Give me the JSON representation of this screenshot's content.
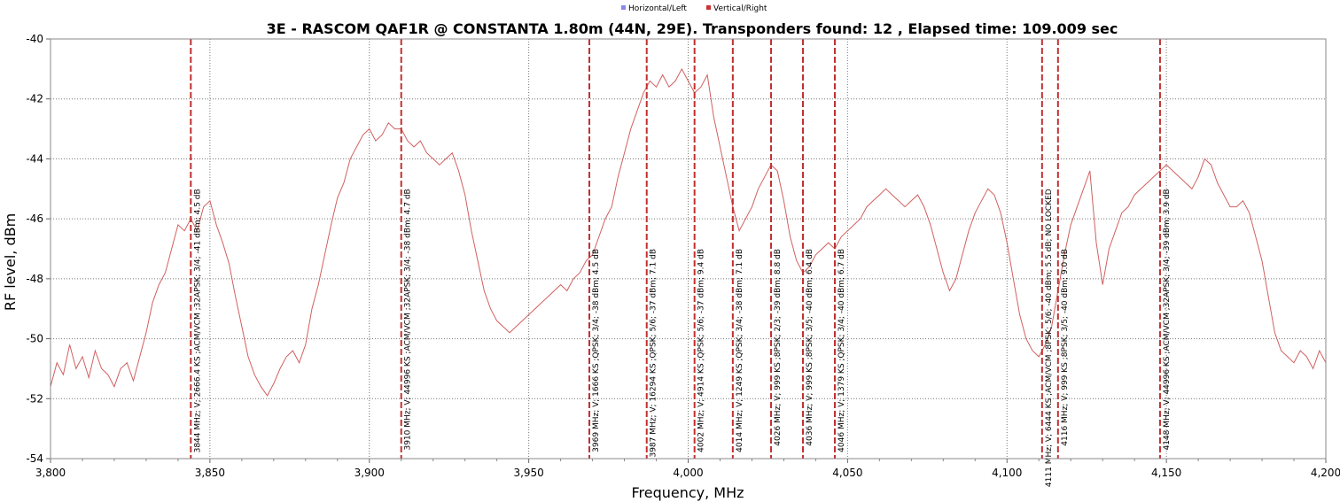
{
  "chart_data": {
    "type": "line",
    "title": "3E - RASCOM QAF1R @ CONSTANTA 1.80m (44N, 29E). Transponders found: 12 , Elapsed time: 109.009 sec",
    "xlabel": "Frequency, MHz",
    "ylabel": "RF level, dBm",
    "xlim": [
      3800,
      4200
    ],
    "ylim": [
      -54,
      -40
    ],
    "x_ticks": [
      3800,
      3850,
      3900,
      3950,
      4000,
      4050,
      4100,
      4150,
      4200
    ],
    "x_tick_labels": [
      "3,800",
      "3,850",
      "3,900",
      "3,950",
      "4,000",
      "4,050",
      "4,100",
      "4,150",
      "4,200"
    ],
    "y_ticks": [
      -54,
      -52,
      -50,
      -48,
      -46,
      -44,
      -42,
      -40
    ],
    "y_tick_labels": [
      "-54",
      "-52",
      "-50",
      "-48",
      "-46",
      "-44",
      "-42",
      "-40"
    ],
    "grid": true,
    "legend_position": "top-center",
    "legend": [
      {
        "name": "Horizontal/Left",
        "color": "#8888ee"
      },
      {
        "name": "Vertical/Right",
        "color": "#cc3333"
      }
    ],
    "series": [
      {
        "name": "Vertical/Right",
        "color": "#d06060",
        "x": [
          3800,
          3802,
          3804,
          3806,
          3808,
          3810,
          3812,
          3814,
          3816,
          3818,
          3820,
          3822,
          3824,
          3826,
          3828,
          3830,
          3832,
          3834,
          3836,
          3838,
          3840,
          3842,
          3844,
          3846,
          3848,
          3850,
          3852,
          3854,
          3856,
          3858,
          3860,
          3862,
          3864,
          3866,
          3868,
          3870,
          3872,
          3874,
          3876,
          3878,
          3880,
          3882,
          3884,
          3886,
          3888,
          3890,
          3892,
          3894,
          3896,
          3898,
          3900,
          3902,
          3904,
          3906,
          3908,
          3910,
          3912,
          3914,
          3916,
          3918,
          3920,
          3922,
          3924,
          3926,
          3928,
          3930,
          3932,
          3934,
          3936,
          3938,
          3940,
          3942,
          3944,
          3946,
          3948,
          3950,
          3952,
          3954,
          3956,
          3958,
          3960,
          3962,
          3964,
          3966,
          3968,
          3970,
          3972,
          3974,
          3976,
          3978,
          3980,
          3982,
          3984,
          3986,
          3988,
          3990,
          3992,
          3994,
          3996,
          3998,
          4000,
          4002,
          4004,
          4006,
          4008,
          4010,
          4012,
          4014,
          4016,
          4018,
          4020,
          4022,
          4024,
          4026,
          4028,
          4030,
          4032,
          4034,
          4036,
          4038,
          4040,
          4042,
          4044,
          4046,
          4048,
          4050,
          4052,
          4054,
          4056,
          4058,
          4060,
          4062,
          4064,
          4066,
          4068,
          4070,
          4072,
          4074,
          4076,
          4078,
          4080,
          4082,
          4084,
          4086,
          4088,
          4090,
          4092,
          4094,
          4096,
          4098,
          4100,
          4102,
          4104,
          4106,
          4108,
          4110,
          4112,
          4114,
          4116,
          4118,
          4120,
          4122,
          4124,
          4126,
          4128,
          4130,
          4132,
          4134,
          4136,
          4138,
          4140,
          4142,
          4144,
          4146,
          4148,
          4150,
          4152,
          4154,
          4156,
          4158,
          4160,
          4162,
          4164,
          4166,
          4168,
          4170,
          4172,
          4174,
          4176,
          4178,
          4180,
          4182,
          4184,
          4186,
          4188,
          4190,
          4192,
          4194,
          4196,
          4198,
          4200
        ],
        "y": [
          -51.6,
          -50.8,
          -51.2,
          -50.2,
          -51.0,
          -50.6,
          -51.3,
          -50.4,
          -51.0,
          -51.2,
          -51.6,
          -51.0,
          -50.8,
          -51.4,
          -50.6,
          -49.8,
          -48.8,
          -48.2,
          -47.8,
          -47.0,
          -46.2,
          -46.4,
          -46.0,
          -46.4,
          -45.6,
          -45.4,
          -46.2,
          -46.8,
          -47.5,
          -48.6,
          -49.6,
          -50.6,
          -51.2,
          -51.6,
          -51.9,
          -51.5,
          -51.0,
          -50.6,
          -50.4,
          -50.8,
          -50.2,
          -49.0,
          -48.2,
          -47.2,
          -46.2,
          -45.3,
          -44.8,
          -44.0,
          -43.6,
          -43.2,
          -43.0,
          -43.4,
          -43.2,
          -42.8,
          -43.0,
          -43.0,
          -43.4,
          -43.6,
          -43.4,
          -43.8,
          -44.0,
          -44.2,
          -44.0,
          -43.8,
          -44.4,
          -45.2,
          -46.4,
          -47.4,
          -48.4,
          -49.0,
          -49.4,
          -49.6,
          -49.8,
          -49.6,
          -49.4,
          -49.2,
          -49.0,
          -48.8,
          -48.6,
          -48.4,
          -48.2,
          -48.4,
          -48.0,
          -47.8,
          -47.4,
          -47.2,
          -46.6,
          -46.0,
          -45.6,
          -44.6,
          -43.8,
          -43.0,
          -42.4,
          -41.8,
          -41.4,
          -41.6,
          -41.2,
          -41.6,
          -41.4,
          -41.0,
          -41.4,
          -41.8,
          -41.6,
          -41.2,
          -42.6,
          -43.6,
          -44.6,
          -45.6,
          -46.4,
          -46.0,
          -45.6,
          -45.0,
          -44.6,
          -44.2,
          -44.4,
          -45.4,
          -46.6,
          -47.4,
          -47.8,
          -47.6,
          -47.2,
          -47.0,
          -46.8,
          -47.0,
          -46.6,
          -46.4,
          -46.2,
          -46.0,
          -45.6,
          -45.4,
          -45.2,
          -45.0,
          -45.2,
          -45.4,
          -45.6,
          -45.4,
          -45.2,
          -45.6,
          -46.2,
          -47.0,
          -47.8,
          -48.4,
          -48.0,
          -47.2,
          -46.4,
          -45.8,
          -45.4,
          -45.0,
          -45.2,
          -45.8,
          -46.8,
          -48.0,
          -49.2,
          -50.0,
          -50.4,
          -50.6,
          -50.2,
          -49.6,
          -48.4,
          -47.2,
          -46.2,
          -45.6,
          -45.0,
          -44.4,
          -46.8,
          -48.2,
          -47.0,
          -46.4,
          -45.8,
          -45.6,
          -45.2,
          -45.0,
          -44.8,
          -44.6,
          -44.4,
          -44.2,
          -44.4,
          -44.6,
          -44.8,
          -45.0,
          -44.6,
          -44.0,
          -44.2,
          -44.8,
          -45.2,
          -45.6,
          -45.6,
          -45.4,
          -45.8,
          -46.6,
          -47.4,
          -48.6,
          -49.8,
          -50.4,
          -50.6,
          -50.8,
          -50.4,
          -50.6,
          -51.0,
          -50.4,
          -50.8
        ]
      }
    ],
    "transponders": [
      {
        "freq": 3844,
        "label": "3844 MHz; V; 2666.4 KS ;ACM/VCM ;32APSK; 3/4; -41 dBm; 4.5 dB",
        "label_top_dbm": -45.0
      },
      {
        "freq": 3910,
        "label": "3910 MHz; V; 44996 KS ;ACM/VCM ;32APSK; 3/4; -38 dBm; 4.7 dB",
        "label_top_dbm": -45.0
      },
      {
        "freq": 3969,
        "label": "3969 MHz; V; 1666 KS ;QPSK; 3/4; -38 dBm; 4.5 dB",
        "label_top_dbm": -47.0
      },
      {
        "freq": 3987,
        "label": "3987 MHz; V; 16294 KS ;QPSK; 5/6; -37 dBm; 7.1 dB",
        "label_top_dbm": -47.0
      },
      {
        "freq": 4002,
        "label": "4002 MHz; V; 4914 KS ;QPSK; 5/6; -37 dBm; 9.4 dB",
        "label_top_dbm": -47.0
      },
      {
        "freq": 4014,
        "label": "4014 MHz; V; 1249 KS ;QPSK; 3/4; -38 dBm; 7.1 dB",
        "label_top_dbm": -47.0
      },
      {
        "freq": 4026,
        "label": "4026 MHz; V; 999 KS ;8PSK; 2/3; -39 dBm; 8.8 dB",
        "label_top_dbm": -47.0
      },
      {
        "freq": 4036,
        "label": "4036 MHz; V; 999 KS ;8PSK; 3/5; -40 dBm; 6.4 dB",
        "label_top_dbm": -47.0
      },
      {
        "freq": 4046,
        "label": "4046 MHz; V; 1379 KS ;QPSK; 3/4; -40 dBm; 6.7 dB",
        "label_top_dbm": -47.0
      },
      {
        "freq": 4111,
        "label": "4111 MHz; V; 6444 KS ;ACM/VCM ;8PSK; 5/6; -40 dBm; 5.5 dB; NO LOCKED",
        "label_top_dbm": -45.0
      },
      {
        "freq": 4116,
        "label": "4116 MHz; V; 999 KS ;8PSK; 3/5; -40 dBm; 9.0 dB",
        "label_top_dbm": -47.0
      },
      {
        "freq": 4148,
        "label": "4148 MHz; V; 44996 KS ;ACM/VCM ;32APSK; 3/4; -39 dBm; 3.9 dB",
        "label_top_dbm": -45.0
      }
    ]
  }
}
